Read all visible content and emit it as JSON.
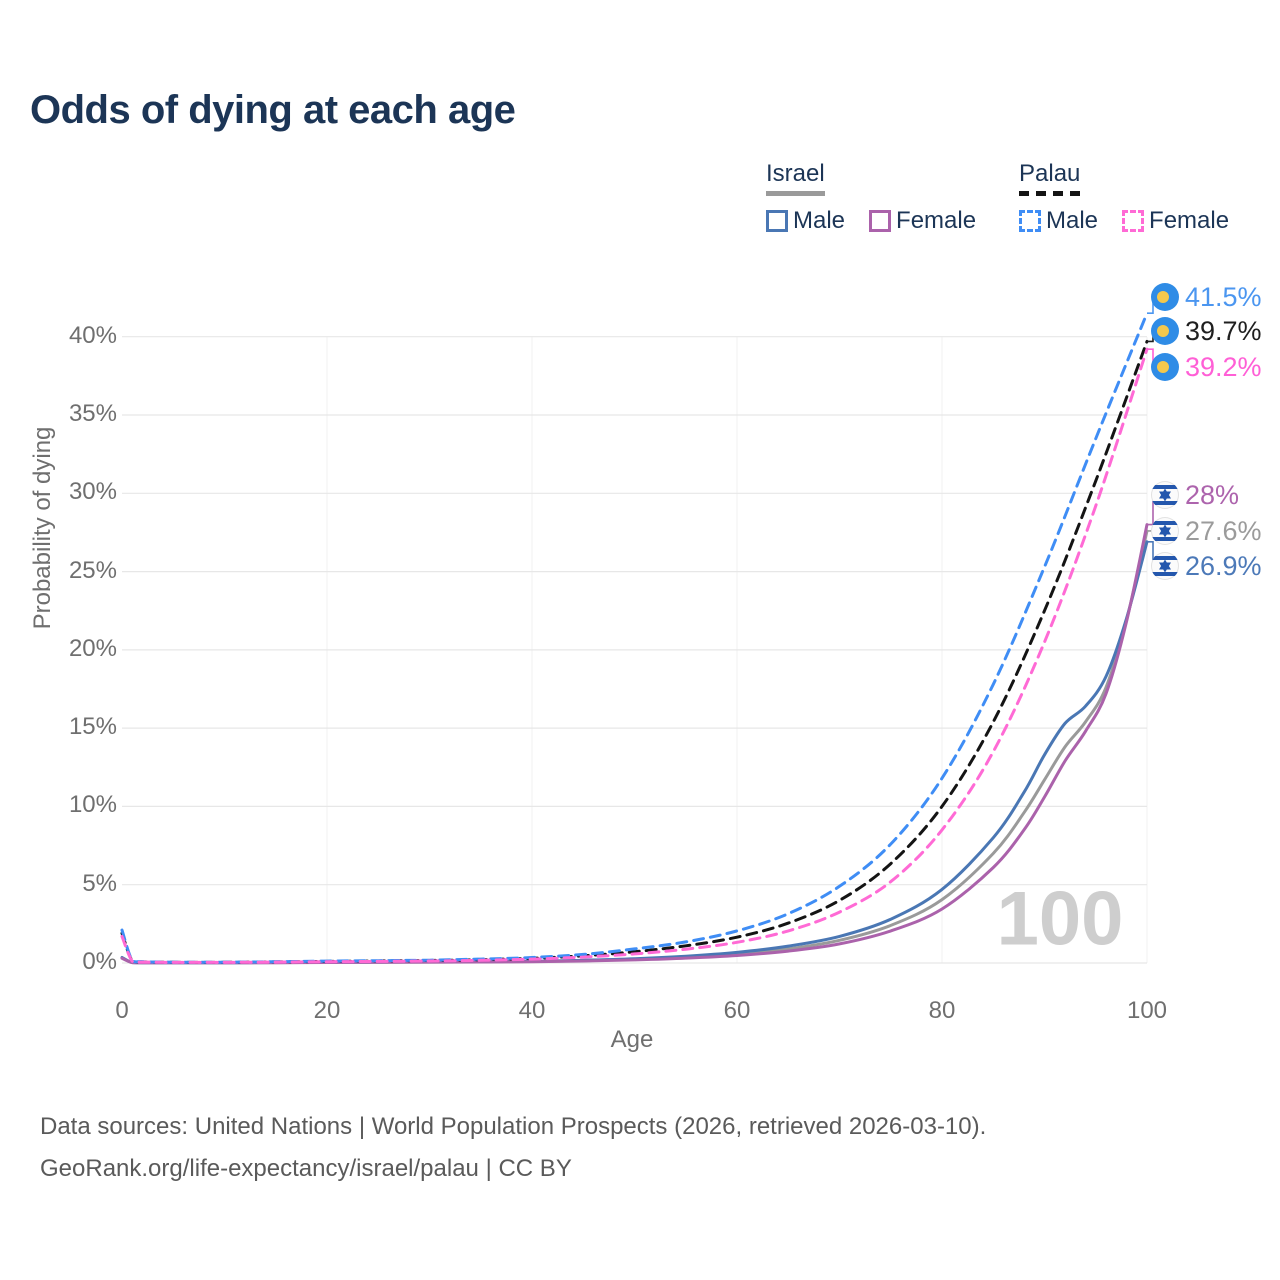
{
  "title": "Odds of dying at each age",
  "watermark": "100",
  "legend": {
    "groups": [
      {
        "label": "Israel",
        "line_style": "solid",
        "underline_color": "#9a9a9a",
        "items": [
          {
            "label": "Male",
            "color": "#4a77b4"
          },
          {
            "label": "Female",
            "color": "#ab62ab"
          }
        ]
      },
      {
        "label": "Palau",
        "line_style": "dashed",
        "underline_color": "#141414",
        "items": [
          {
            "label": "Male",
            "color": "#3f8df5"
          },
          {
            "label": "Female",
            "color": "#ff6ad5"
          }
        ]
      }
    ]
  },
  "footer": {
    "line1": "Data sources: United Nations | World Population Prospects (2026, retrieved 2026-03-10).",
    "line2": "GeoRank.org/life-expectancy/israel/palau | CC BY"
  },
  "chart_data": {
    "type": "line",
    "title": "Odds of dying at each age",
    "xlabel": "Age",
    "ylabel": "Probability of dying",
    "xlim": [
      0,
      100
    ],
    "ylim": [
      0,
      43
    ],
    "x_ticks": [
      0,
      20,
      40,
      60,
      80,
      100
    ],
    "y_tick_values": [
      0,
      5,
      10,
      15,
      20,
      25,
      30,
      35,
      40
    ],
    "y_tick_labels": [
      "0%",
      "5%",
      "10%",
      "15%",
      "20%",
      "25%",
      "30%",
      "35%",
      "40%"
    ],
    "grid": true,
    "legend_position": "top-right",
    "series": [
      {
        "id": "israel-male",
        "country": "Israel",
        "sex": "Male",
        "color": "#4a77b4",
        "dashed": false,
        "end_label": "26.9%",
        "label_color": "#4c79b8",
        "flag": "israel",
        "x": [
          0,
          1,
          2,
          5,
          10,
          15,
          20,
          25,
          30,
          35,
          40,
          45,
          50,
          55,
          60,
          65,
          70,
          75,
          80,
          85,
          88,
          90,
          92,
          94,
          96,
          98,
          100
        ],
        "y": [
          0.35,
          0.03,
          0.02,
          0.015,
          0.015,
          0.03,
          0.05,
          0.06,
          0.07,
          0.08,
          0.11,
          0.17,
          0.27,
          0.43,
          0.68,
          1.08,
          1.7,
          2.8,
          4.7,
          8.0,
          10.9,
          13.3,
          15.3,
          16.4,
          18.3,
          22.0,
          26.9
        ]
      },
      {
        "id": "israel-total",
        "country": "Israel",
        "sex": "Both",
        "color": "#9a9a9a",
        "dashed": false,
        "end_label": "27.6%",
        "label_color": "#9b9b9b",
        "flag": "israel",
        "x": [
          0,
          1,
          2,
          5,
          10,
          15,
          20,
          25,
          30,
          35,
          40,
          45,
          50,
          55,
          60,
          65,
          70,
          75,
          80,
          85,
          88,
          90,
          92,
          94,
          96,
          98,
          100
        ],
        "y": [
          0.32,
          0.028,
          0.018,
          0.013,
          0.013,
          0.025,
          0.04,
          0.05,
          0.06,
          0.07,
          0.095,
          0.15,
          0.23,
          0.36,
          0.57,
          0.9,
          1.45,
          2.4,
          4.05,
          7.0,
          9.6,
          11.7,
          13.8,
          15.4,
          17.6,
          21.9,
          27.6
        ]
      },
      {
        "id": "israel-female",
        "country": "Israel",
        "sex": "Female",
        "color": "#ab62ab",
        "dashed": false,
        "end_label": "28%",
        "label_color": "#ad64ad",
        "flag": "israel",
        "x": [
          0,
          1,
          2,
          5,
          10,
          15,
          20,
          25,
          30,
          35,
          40,
          45,
          50,
          55,
          60,
          65,
          70,
          75,
          80,
          85,
          88,
          90,
          92,
          94,
          96,
          98,
          100
        ],
        "y": [
          0.3,
          0.025,
          0.016,
          0.012,
          0.012,
          0.022,
          0.035,
          0.045,
          0.055,
          0.065,
          0.085,
          0.13,
          0.2,
          0.31,
          0.48,
          0.76,
          1.22,
          2.05,
          3.45,
          6.1,
          8.5,
          10.6,
          12.9,
          14.8,
          17.2,
          21.8,
          28.0
        ]
      },
      {
        "id": "palau-male",
        "country": "Palau",
        "sex": "Male",
        "color": "#3f8df5",
        "dashed": true,
        "end_label": "41.5%",
        "label_color": "#4b96f0",
        "flag": "palau",
        "x": [
          0,
          1,
          2,
          5,
          10,
          15,
          20,
          25,
          30,
          35,
          40,
          45,
          50,
          55,
          60,
          65,
          70,
          75,
          80,
          85,
          90,
          95,
          100
        ],
        "y": [
          2.1,
          0.15,
          0.08,
          0.05,
          0.05,
          0.08,
          0.12,
          0.15,
          0.18,
          0.25,
          0.35,
          0.55,
          0.9,
          1.35,
          2.05,
          3.15,
          4.9,
          7.6,
          11.8,
          17.8,
          25.3,
          33.5,
          41.5
        ]
      },
      {
        "id": "palau-total",
        "country": "Palau",
        "sex": "Both",
        "color": "#141414",
        "dashed": true,
        "end_label": "39.7%",
        "label_color": "#1f1f1f",
        "flag": "palau",
        "x": [
          0,
          1,
          2,
          5,
          10,
          15,
          20,
          25,
          30,
          35,
          40,
          45,
          50,
          55,
          60,
          65,
          70,
          75,
          80,
          85,
          90,
          95,
          100
        ],
        "y": [
          1.9,
          0.13,
          0.07,
          0.045,
          0.045,
          0.07,
          0.1,
          0.13,
          0.16,
          0.21,
          0.3,
          0.46,
          0.72,
          1.1,
          1.65,
          2.55,
          4.0,
          6.35,
          10.0,
          15.4,
          22.5,
          30.8,
          39.7
        ]
      },
      {
        "id": "palau-female",
        "country": "Palau",
        "sex": "Female",
        "color": "#ff6ad5",
        "dashed": true,
        "end_label": "39.2%",
        "label_color": "#ff5fd6",
        "flag": "palau",
        "x": [
          0,
          1,
          2,
          5,
          10,
          15,
          20,
          25,
          30,
          35,
          40,
          45,
          50,
          55,
          60,
          65,
          70,
          75,
          80,
          85,
          90,
          95,
          100
        ],
        "y": [
          1.7,
          0.11,
          0.06,
          0.04,
          0.04,
          0.06,
          0.08,
          0.1,
          0.13,
          0.17,
          0.25,
          0.38,
          0.58,
          0.88,
          1.32,
          2.05,
          3.25,
          5.2,
          8.5,
          13.5,
          20.5,
          29.2,
          39.2
        ]
      }
    ]
  }
}
